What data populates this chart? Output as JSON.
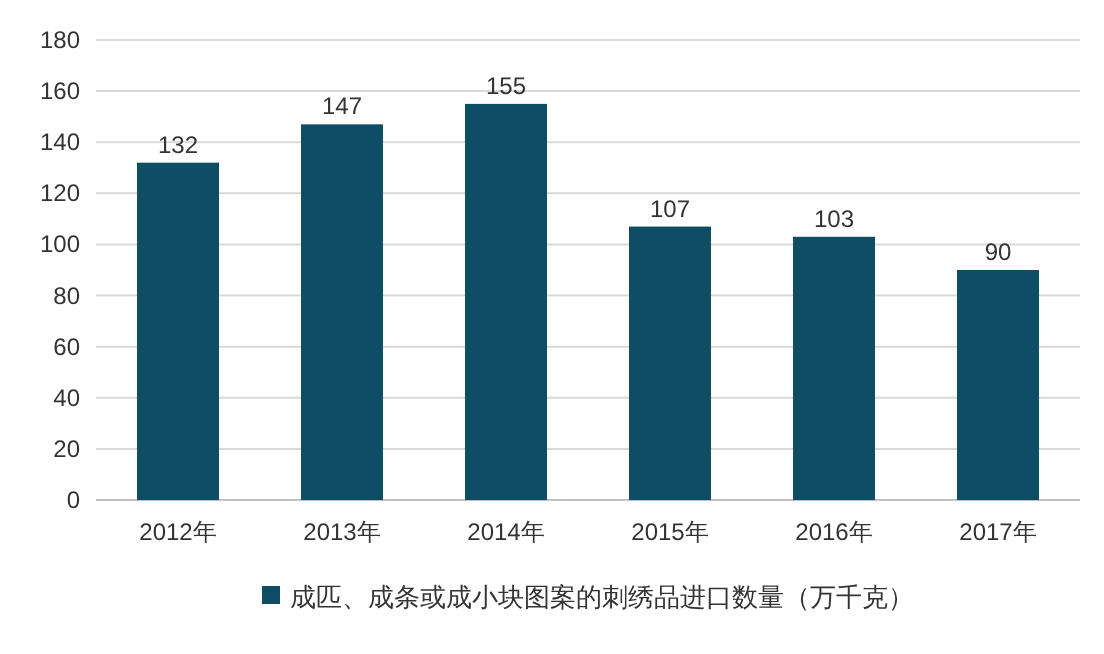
{
  "chart_data": {
    "type": "bar",
    "categories": [
      "2012年",
      "2013年",
      "2014年",
      "2015年",
      "2016年",
      "2017年"
    ],
    "series": [
      {
        "name": "成匹、成条或成小块图案的刺绣品进口数量（万千克）",
        "color": "#0e4d64",
        "values": [
          132,
          147,
          155,
          107,
          103,
          90
        ]
      }
    ],
    "ylim": [
      0,
      180
    ],
    "yticks": [
      0,
      20,
      40,
      60,
      80,
      100,
      120,
      140,
      160,
      180
    ],
    "grid": "y",
    "legend": "bottom",
    "data_labels": true
  }
}
